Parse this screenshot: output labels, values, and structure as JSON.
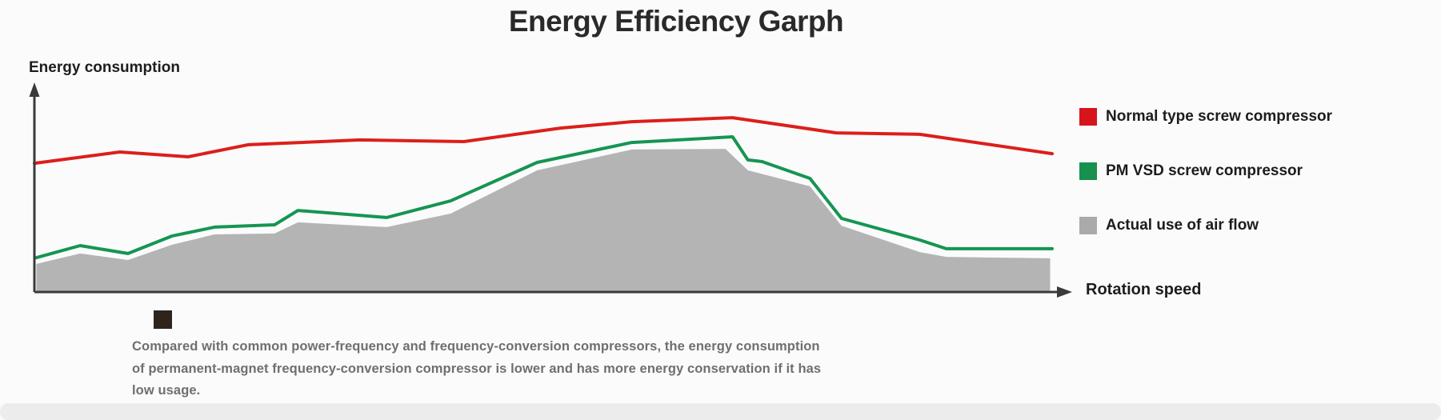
{
  "title": {
    "text": "Energy Efficiency Garph"
  },
  "chart": {
    "y_axis_label": "Energy consumption",
    "x_axis_label": "Rotation speed",
    "axis_color": "#3a3a3a"
  },
  "legend": {
    "items": [
      {
        "label": "Normal type screw compressor",
        "color": "#d6141c"
      },
      {
        "label": "PM VSD screw compressor",
        "color": "#17914d"
      },
      {
        "label": "Actual use of air flow",
        "color": "#aaaaaa"
      }
    ]
  },
  "note": {
    "bullet_color": "#2e241c",
    "lines": [
      "Compared with common power-frequency and frequency-conversion compressors, the energy consumption",
      "of permanent-magnet frequency-conversion compressor is lower and has more energy conservation if it has",
      "low usage."
    ]
  },
  "chart_data": {
    "type": "area",
    "title": "Energy Efficiency Garph",
    "xlabel": "Rotation speed",
    "ylabel": "Energy consumption",
    "x_range": [
      0,
      100
    ],
    "y_range": [
      0,
      100
    ],
    "grid": false,
    "legend_position": "right",
    "axes_have_numeric_ticks": false,
    "series": [
      {
        "name": "Normal type screw compressor",
        "type": "line",
        "color": "#dc1f1a",
        "points": [
          [
            0,
            61.9
          ],
          [
            8.4,
            67.3
          ],
          [
            15.1,
            65.0
          ],
          [
            21.0,
            70.8
          ],
          [
            32.0,
            73.1
          ],
          [
            42.2,
            72.3
          ],
          [
            51.7,
            78.8
          ],
          [
            58.7,
            81.9
          ],
          [
            68.6,
            83.8
          ],
          [
            78.8,
            76.5
          ],
          [
            87.0,
            75.8
          ],
          [
            100,
            66.5
          ]
        ]
      },
      {
        "name": "PM VSD screw compressor",
        "type": "line",
        "color": "#169552",
        "points": [
          [
            0.2,
            16.5
          ],
          [
            4.5,
            22.3
          ],
          [
            9.2,
            18.5
          ],
          [
            13.5,
            26.9
          ],
          [
            17.7,
            31.2
          ],
          [
            23.6,
            32.3
          ],
          [
            25.9,
            39.2
          ],
          [
            34.6,
            35.8
          ],
          [
            40.9,
            43.8
          ],
          [
            49.4,
            62.3
          ],
          [
            58.7,
            71.9
          ],
          [
            68.6,
            74.6
          ],
          [
            70.1,
            63.5
          ],
          [
            71.5,
            62.7
          ],
          [
            76.2,
            54.6
          ],
          [
            79.3,
            35.4
          ],
          [
            87.0,
            25.0
          ],
          [
            89.6,
            20.8
          ],
          [
            100,
            20.8
          ]
        ]
      },
      {
        "name": "Actual use of air flow",
        "type": "area",
        "color": "#b4b4b4",
        "points": [
          [
            0.2,
            13.5
          ],
          [
            4.5,
            18.5
          ],
          [
            9.2,
            15.4
          ],
          [
            13.5,
            22.7
          ],
          [
            17.7,
            27.7
          ],
          [
            23.6,
            28.1
          ],
          [
            25.9,
            33.5
          ],
          [
            34.6,
            31.2
          ],
          [
            40.9,
            37.7
          ],
          [
            49.4,
            58.5
          ],
          [
            58.7,
            68.5
          ],
          [
            67.9,
            68.8
          ],
          [
            70.1,
            58.5
          ],
          [
            76.2,
            50.8
          ],
          [
            79.3,
            31.9
          ],
          [
            87.0,
            19.2
          ],
          [
            89.6,
            16.9
          ],
          [
            99.8,
            16.2
          ]
        ]
      }
    ]
  }
}
